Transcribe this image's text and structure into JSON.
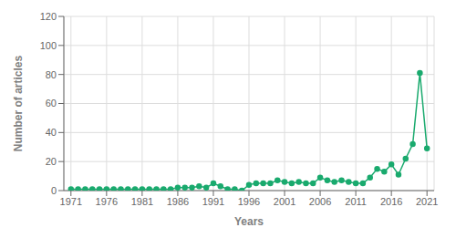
{
  "chart_data": {
    "type": "line",
    "xlabel": "Years",
    "ylabel": "Number of articles",
    "x": [
      1971,
      1972,
      1973,
      1974,
      1975,
      1976,
      1977,
      1978,
      1979,
      1980,
      1981,
      1982,
      1983,
      1984,
      1985,
      1986,
      1987,
      1988,
      1989,
      1990,
      1991,
      1992,
      1993,
      1994,
      1995,
      1996,
      1997,
      1998,
      1999,
      2000,
      2001,
      2002,
      2003,
      2004,
      2005,
      2006,
      2007,
      2008,
      2009,
      2010,
      2011,
      2012,
      2013,
      2014,
      2015,
      2016,
      2017,
      2018,
      2019,
      2020,
      2021
    ],
    "values": [
      1,
      1,
      1,
      1,
      1,
      1,
      1,
      1,
      1,
      1,
      1,
      1,
      1,
      1,
      1,
      2,
      2,
      2,
      3,
      2,
      5,
      3,
      1,
      1,
      0,
      4,
      5,
      5,
      5,
      7,
      6,
      5,
      6,
      5,
      5,
      9,
      7,
      6,
      7,
      6,
      5,
      5,
      9,
      15,
      13,
      18,
      11,
      22,
      32,
      81,
      29
    ],
    "color": "#1aaa6e",
    "marker": "circle",
    "xlim": [
      1970,
      2022
    ],
    "xticks": [
      1971,
      1976,
      1981,
      1986,
      1991,
      1996,
      2001,
      2006,
      2011,
      2016,
      2021
    ],
    "ylim": [
      0,
      120
    ],
    "yticks": [
      0,
      20,
      40,
      60,
      80,
      100,
      120
    ],
    "grid": true
  }
}
